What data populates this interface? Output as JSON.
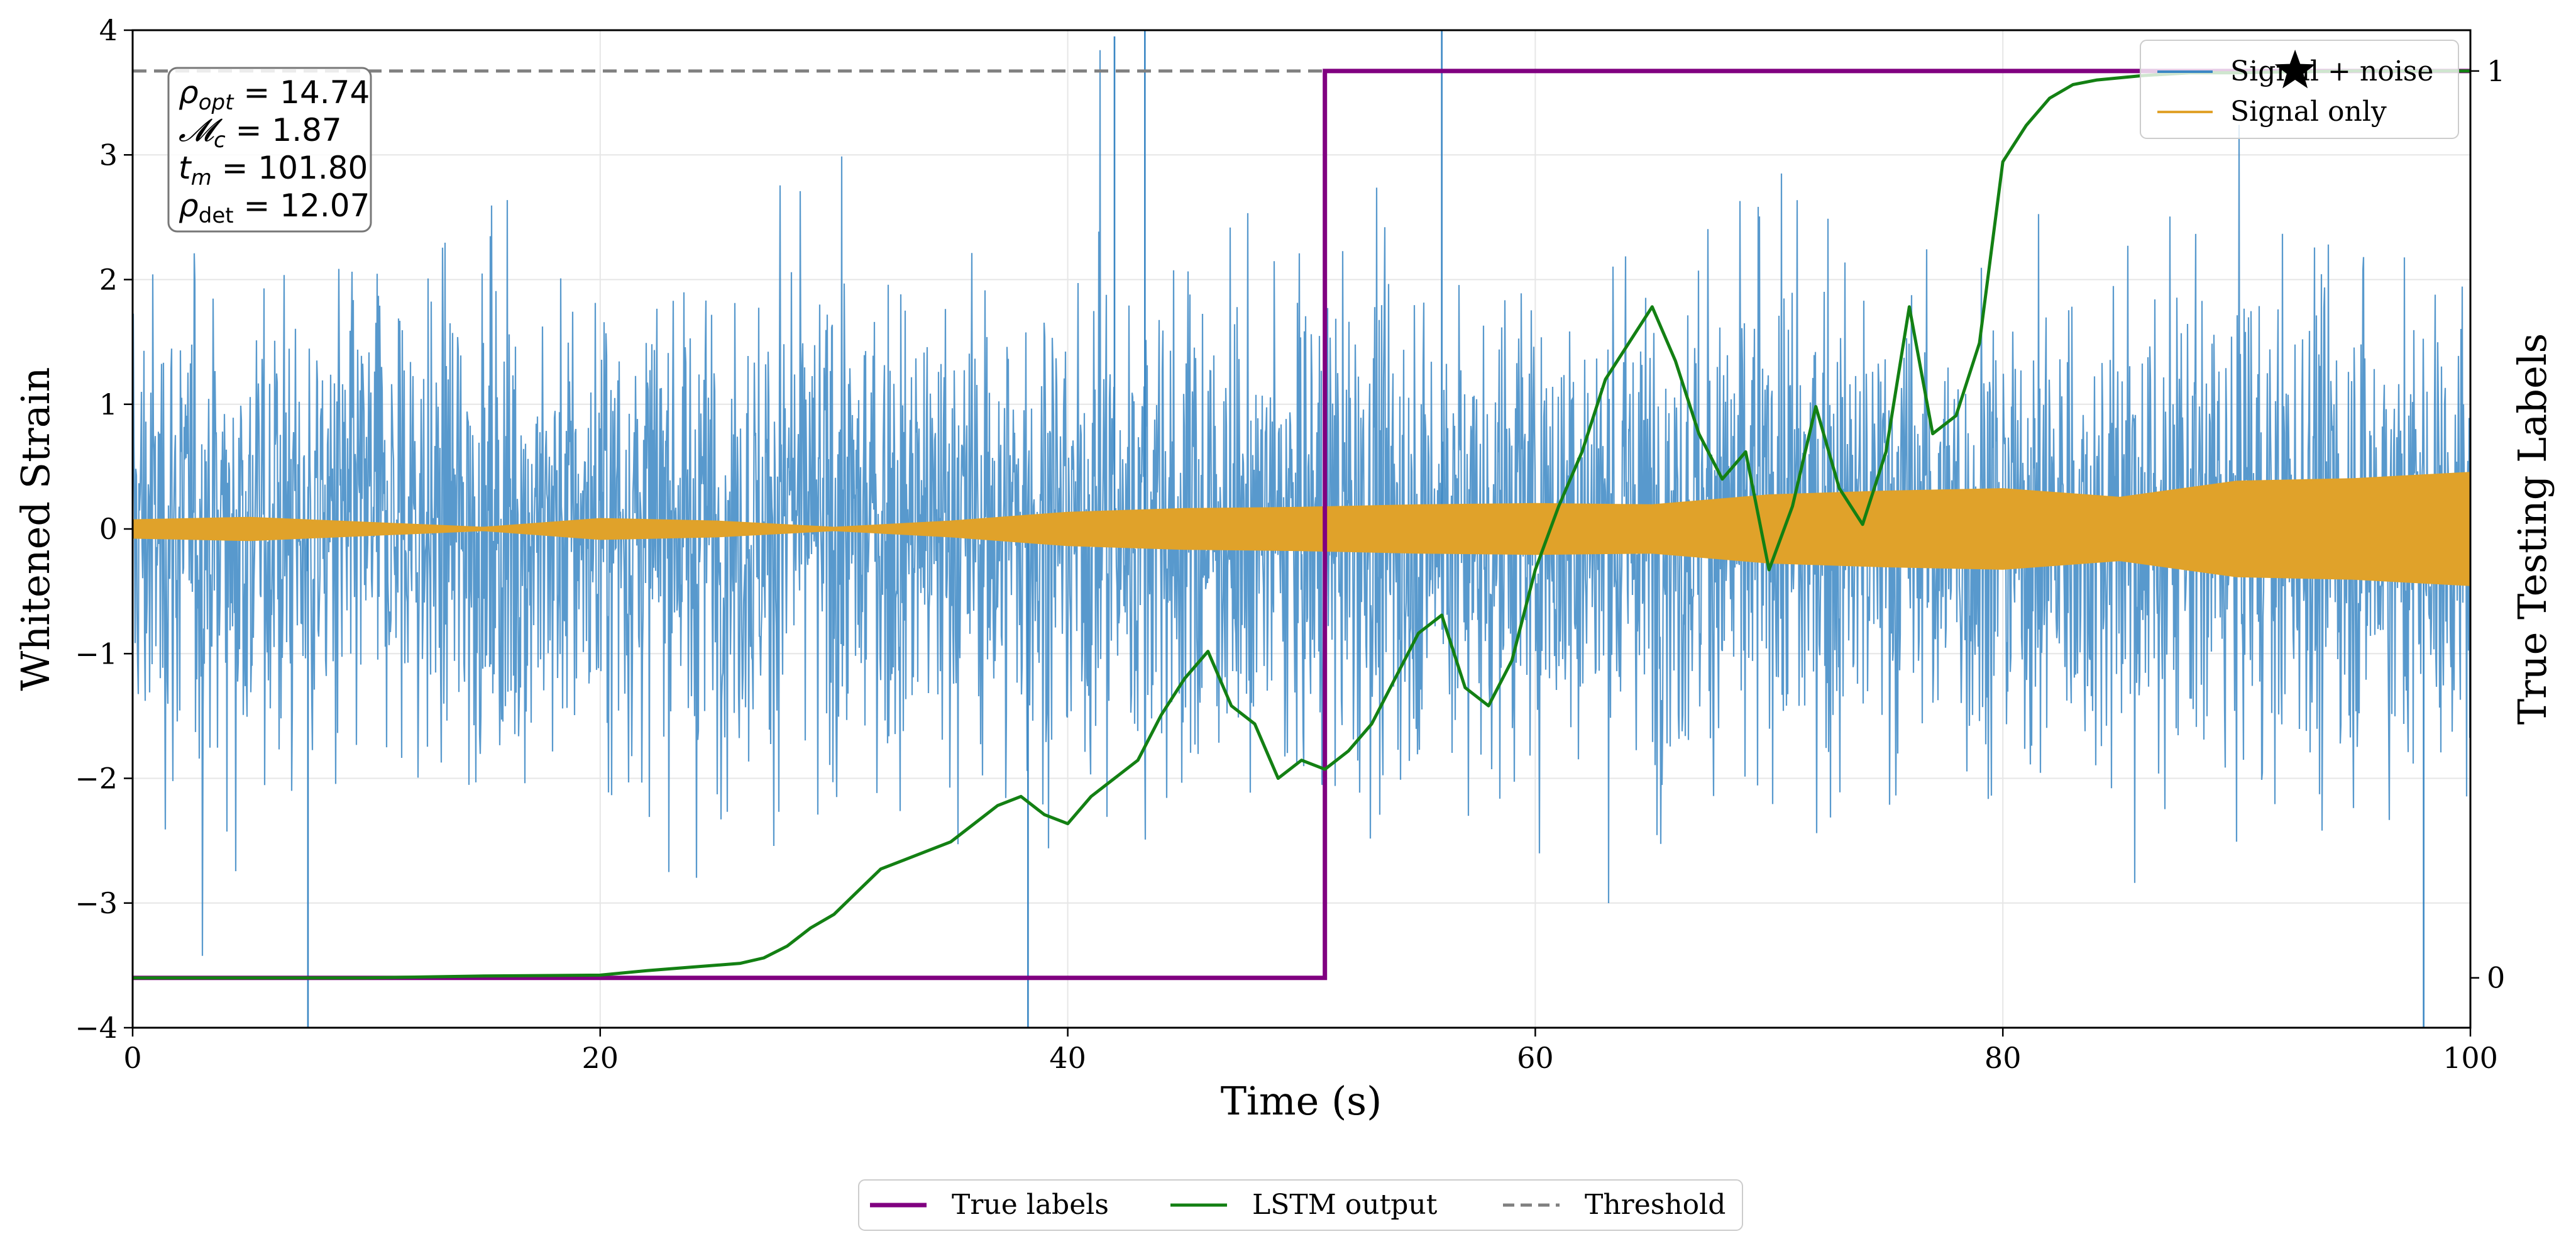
{
  "chart_data": {
    "type": "line",
    "xlabel": "Time (s)",
    "ylabel": "Whitened Strain",
    "y2label": "True Testing Labels",
    "xlim": [
      0,
      100
    ],
    "ylim": [
      -4,
      4
    ],
    "y2lim": [
      -0.055,
      1.045
    ],
    "x_ticks": [
      0,
      20,
      40,
      60,
      80,
      100
    ],
    "y_ticks": [
      -4,
      -3,
      -2,
      -1,
      0,
      1,
      2,
      3,
      4
    ],
    "y2_ticks": [
      0,
      1
    ],
    "grid": true,
    "annotation": [
      {
        "sym": "ρ",
        "sub": "opt",
        "sub_style": "italic",
        "value": "14.74"
      },
      {
        "sym": "𝓜",
        "sub": "c",
        "sub_style": "italic",
        "value": "1.87"
      },
      {
        "sym": "t",
        "sub": "m",
        "sub_style": "italic",
        "value": "101.80"
      },
      {
        "sym": "ρ",
        "sub": "det",
        "sub_style": "normal",
        "value": "12.07"
      }
    ],
    "series": [
      {
        "name": "Signal + noise",
        "color": "#3b87c4",
        "description": "whitened noisy strain, std ~1.1, occasional spikes to |4|"
      },
      {
        "name": "Signal only",
        "color": "#e0a22a",
        "envelope_x": [
          0,
          5,
          10,
          15,
          20,
          25,
          30,
          35,
          40,
          45,
          50,
          55,
          60,
          65,
          70,
          75,
          80,
          85,
          90,
          95,
          100
        ],
        "envelope_amp": [
          0.07,
          0.09,
          0.05,
          0.01,
          0.08,
          0.06,
          0.01,
          0.06,
          0.13,
          0.16,
          0.17,
          0.19,
          0.2,
          0.19,
          0.27,
          0.3,
          0.32,
          0.25,
          0.38,
          0.4,
          0.45
        ]
      },
      {
        "name": "True labels",
        "color": "#800080",
        "axis": "right",
        "x": [
          0,
          51,
          51,
          100
        ],
        "y": [
          0,
          0,
          1,
          1
        ]
      },
      {
        "name": "LSTM output",
        "color": "#138013",
        "axis": "right",
        "x": [
          0,
          5,
          10,
          15,
          20,
          22,
          24,
          26,
          27,
          28,
          29,
          30,
          31,
          32,
          33,
          34,
          35,
          36,
          37,
          38,
          39,
          40,
          41,
          42,
          43,
          44,
          45,
          46,
          47,
          48,
          49,
          50,
          51,
          52,
          53,
          54,
          55,
          56,
          57,
          58,
          59,
          60,
          61,
          62,
          63,
          64,
          65,
          66,
          67,
          68,
          69,
          70,
          71,
          72,
          73,
          74,
          75,
          76,
          77,
          78,
          79,
          80,
          81,
          82,
          83,
          84,
          86,
          88,
          90,
          92,
          95,
          100
        ],
        "y": [
          0.0,
          0.0,
          0.0,
          0.002,
          0.003,
          0.008,
          0.012,
          0.016,
          0.022,
          0.035,
          0.055,
          0.07,
          0.095,
          0.12,
          0.13,
          0.14,
          0.15,
          0.17,
          0.19,
          0.2,
          0.18,
          0.17,
          0.2,
          0.22,
          0.24,
          0.29,
          0.33,
          0.36,
          0.3,
          0.28,
          0.22,
          0.24,
          0.23,
          0.25,
          0.28,
          0.33,
          0.38,
          0.4,
          0.32,
          0.3,
          0.35,
          0.45,
          0.52,
          0.58,
          0.66,
          0.7,
          0.74,
          0.68,
          0.6,
          0.55,
          0.58,
          0.45,
          0.52,
          0.63,
          0.54,
          0.5,
          0.58,
          0.74,
          0.6,
          0.62,
          0.7,
          0.9,
          0.94,
          0.97,
          0.985,
          0.99,
          0.995,
          0.998,
          0.998,
          0.999,
          1.0,
          1.0
        ]
      },
      {
        "name": "Threshold",
        "color": "#808080",
        "axis": "right",
        "style": "dashed",
        "value": 1.0
      }
    ],
    "marker": {
      "shape": "star",
      "x": 92.5,
      "y2": 1.0
    },
    "legend_upper": {
      "placement": "top-right",
      "entries": [
        "Signal + noise",
        "Signal only"
      ]
    },
    "legend_lower": {
      "placement": "bottom-center",
      "entries": [
        "True labels",
        "LSTM output",
        "Threshold"
      ]
    }
  }
}
